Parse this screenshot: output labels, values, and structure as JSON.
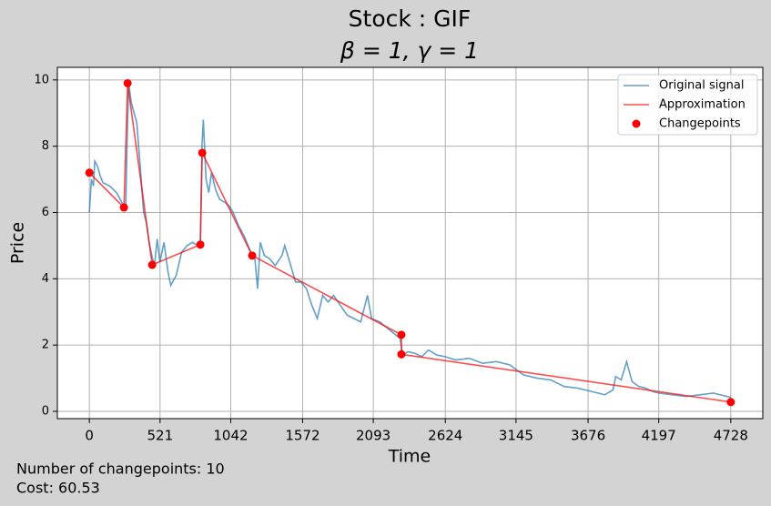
{
  "chart_data": {
    "type": "line",
    "title": "Stock : GIF",
    "subtitle": "β = 1, γ = 1",
    "x_label": "Time",
    "y_label": "Price",
    "annotations": [
      "Number of changepoints: 10",
      "Cost: 60.53"
    ],
    "xlim": [
      -236,
      4964
    ],
    "ylim": [
      -0.22,
      10.38
    ],
    "xticks": [
      0,
      521,
      1042,
      1572,
      2093,
      2624,
      3145,
      3676,
      4197,
      4728
    ],
    "yticks": [
      0,
      2,
      4,
      6,
      8,
      10
    ],
    "grid": true,
    "legend": "upper-right",
    "series": [
      {
        "name": "Original signal",
        "color": "#1f77b4",
        "mode": "line",
        "x": [
          0,
          15,
          30,
          40,
          60,
          80,
          100,
          150,
          200,
          240,
          268,
          280,
          290,
          310,
          330,
          350,
          380,
          400,
          420,
          440,
          466,
          480,
          500,
          520,
          550,
          580,
          600,
          640,
          680,
          720,
          760,
          800,
          818,
          830,
          840,
          860,
          880,
          900,
          930,
          960,
          1000,
          1030,
          1060,
          1100,
          1140,
          1180,
          1200,
          1220,
          1240,
          1260,
          1290,
          1330,
          1370,
          1420,
          1440,
          1470,
          1520,
          1560,
          1600,
          1640,
          1680,
          1720,
          1760,
          1800,
          1850,
          1900,
          1950,
          2000,
          2050,
          2080,
          2140,
          2200,
          2260,
          2290,
          2310,
          2350,
          2400,
          2450,
          2500,
          2560,
          2620,
          2700,
          2800,
          2900,
          3000,
          3100,
          3150,
          3200,
          3300,
          3400,
          3500,
          3600,
          3700,
          3800,
          3860,
          3880,
          3920,
          3960,
          4000,
          4050,
          4100,
          4150,
          4200,
          4300,
          4400,
          4500,
          4600,
          4700,
          4728
        ],
        "values": [
          6.0,
          7.0,
          6.8,
          7.55,
          7.4,
          7.1,
          6.9,
          6.8,
          6.6,
          6.3,
          6.1,
          8.5,
          9.9,
          9.3,
          9.0,
          8.7,
          7.1,
          6.0,
          5.7,
          5.1,
          4.6,
          4.4,
          5.2,
          4.5,
          5.1,
          4.2,
          3.8,
          4.1,
          4.8,
          5.0,
          5.1,
          5.0,
          5.1,
          8.0,
          8.8,
          7.0,
          6.6,
          7.2,
          6.7,
          6.4,
          6.3,
          6.2,
          6.0,
          5.6,
          5.3,
          4.9,
          4.7,
          4.6,
          3.7,
          5.1,
          4.7,
          4.6,
          4.4,
          4.7,
          5.0,
          4.6,
          3.9,
          3.9,
          3.7,
          3.2,
          2.8,
          3.5,
          3.3,
          3.5,
          3.2,
          2.9,
          2.8,
          2.7,
          3.5,
          2.8,
          2.7,
          2.5,
          2.3,
          2.2,
          1.7,
          1.8,
          1.75,
          1.65,
          1.85,
          1.7,
          1.65,
          1.55,
          1.6,
          1.45,
          1.5,
          1.4,
          1.25,
          1.1,
          1.0,
          0.95,
          0.75,
          0.7,
          0.6,
          0.5,
          0.65,
          1.05,
          0.95,
          1.5,
          0.9,
          0.75,
          0.7,
          0.6,
          0.55,
          0.5,
          0.45,
          0.5,
          0.55,
          0.45,
          0.42
        ]
      },
      {
        "name": "Approximation",
        "color": "#ff0000",
        "mode": "line",
        "x": [
          0,
          255,
          282,
          463,
          818,
          832,
          1200,
          2300,
          2300,
          4728
        ],
        "values": [
          7.2,
          6.15,
          9.9,
          4.42,
          5.03,
          7.8,
          4.7,
          2.31,
          1.72,
          0.28
        ]
      },
      {
        "name": "Changepoints",
        "color": "#ff0000",
        "mode": "markers",
        "x": [
          0,
          255,
          282,
          463,
          818,
          832,
          1200,
          2300,
          2300,
          4728
        ],
        "values": [
          7.2,
          6.15,
          9.9,
          4.42,
          5.03,
          7.8,
          4.7,
          2.31,
          1.72,
          0.28
        ]
      }
    ]
  }
}
